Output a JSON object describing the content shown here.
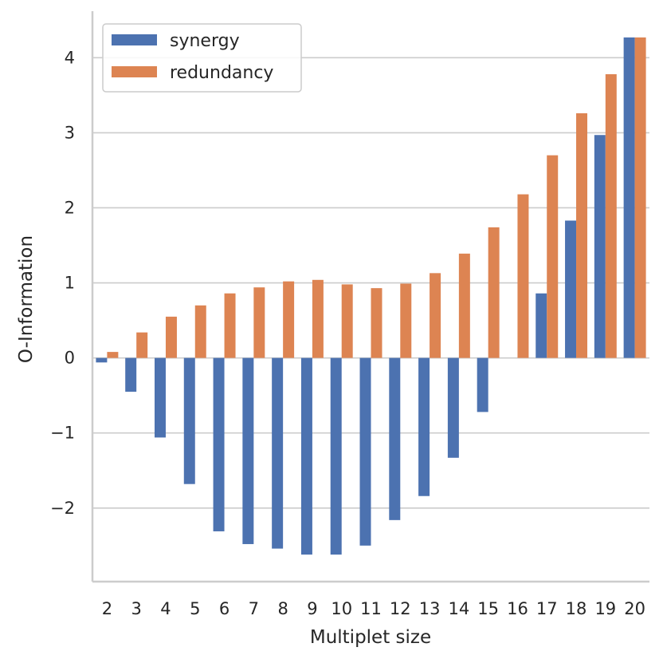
{
  "chart_data": {
    "type": "bar",
    "title": "",
    "xlabel": "Multiplet size",
    "ylabel": "O-Information",
    "categories": [
      "2",
      "3",
      "4",
      "5",
      "6",
      "7",
      "8",
      "9",
      "10",
      "11",
      "12",
      "13",
      "14",
      "15",
      "16",
      "17",
      "18",
      "19",
      "20"
    ],
    "series": [
      {
        "name": "synergy",
        "color": "#4c72b0",
        "values": [
          -0.06,
          -0.45,
          -1.06,
          -1.68,
          -2.31,
          -2.48,
          -2.54,
          -2.62,
          -2.62,
          -2.5,
          -2.16,
          -1.84,
          -1.33,
          -0.72,
          0.0,
          0.86,
          1.83,
          2.97,
          4.27
        ]
      },
      {
        "name": "redundancy",
        "color": "#dd8452",
        "values": [
          0.08,
          0.34,
          0.55,
          0.7,
          0.86,
          0.94,
          1.02,
          1.04,
          0.98,
          0.93,
          0.99,
          1.13,
          1.39,
          1.74,
          2.18,
          2.7,
          3.26,
          3.78,
          4.27
        ]
      }
    ],
    "yticks": [
      -2,
      -1,
      0,
      1,
      2,
      3,
      4
    ],
    "ytick_labels": [
      "−2",
      "−1",
      "0",
      "1",
      "2",
      "3",
      "4"
    ],
    "ylim": [
      -2.98,
      4.62
    ],
    "grid": "horizontal",
    "legend_position": "top-left"
  }
}
